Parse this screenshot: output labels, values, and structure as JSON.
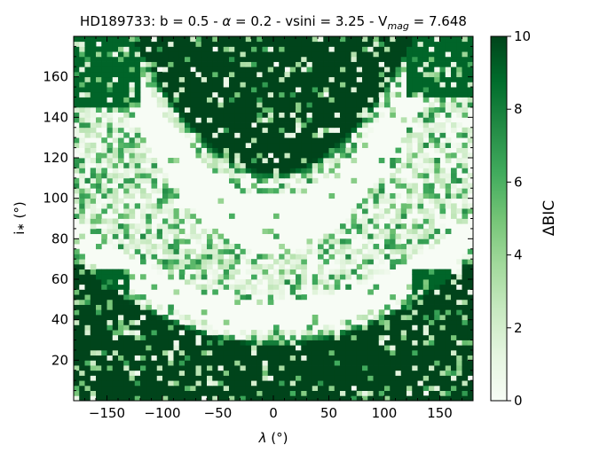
{
  "chart_data": {
    "type": "heatmap",
    "title": {
      "prefix": "HD189733:  b = 0.5 - ",
      "alpha_symbol": "α",
      "alpha_part": " = 0.2 - vsini = 3.25 - V",
      "subscript": "mag",
      "suffix": " = 7.648"
    },
    "xlabel": {
      "symbol": "λ",
      "unit": " (°)"
    },
    "ylabel": {
      "symbol": "i",
      "star": "∗",
      "unit": " (°)"
    },
    "xlim": [
      -180,
      180
    ],
    "ylim": [
      0,
      180
    ],
    "xticks": [
      -150,
      -100,
      -50,
      0,
      50,
      100,
      150
    ],
    "xtick_labels": [
      "−150",
      "−100",
      "−50",
      "0",
      "50",
      "100",
      "150"
    ],
    "yticks": [
      20,
      40,
      60,
      80,
      100,
      120,
      140,
      160
    ],
    "ytick_labels": [
      "20",
      "40",
      "60",
      "80",
      "100",
      "120",
      "140",
      "160"
    ],
    "grid": false,
    "colormap": "Greens",
    "colorbar": {
      "label": "ΔBIC",
      "range": [
        0,
        10
      ],
      "ticks": [
        0,
        2,
        4,
        6,
        8,
        10
      ],
      "tick_labels": [
        "0",
        "2",
        "4",
        "6",
        "8",
        "10"
      ]
    },
    "grid_resolution": {
      "nx": 72,
      "ny": 72,
      "dx_deg": 5,
      "dy_deg": 2.5
    },
    "structure": {
      "description_of_dark_regions": "high ΔBIC (~10) in four corners and top-center lobe; low ΔBIC (~0) in two arcs",
      "dark_regions": [
        {
          "name": "top-left",
          "lambda_range": [
            -180,
            -120
          ],
          "inc_range": [
            145,
            180
          ],
          "level": 10
        },
        {
          "name": "top-center",
          "lambda_range": [
            -45,
            45
          ],
          "inc_range": [
            120,
            180
          ],
          "level": 10
        },
        {
          "name": "top-right",
          "lambda_range": [
            120,
            180
          ],
          "inc_range": [
            150,
            180
          ],
          "level": 10
        },
        {
          "name": "bottom-left",
          "lambda_range": [
            -180,
            -130
          ],
          "inc_range": [
            0,
            65
          ],
          "level": 10
        },
        {
          "name": "bottom-center",
          "lambda_range": [
            -60,
            80
          ],
          "inc_range": [
            0,
            25
          ],
          "level": 9
        },
        {
          "name": "bottom-right",
          "lambda_range": [
            125,
            180
          ],
          "inc_range": [
            0,
            65
          ],
          "level": 10
        }
      ],
      "low_arcs": [
        {
          "name": "upper-arc",
          "vertex_lambda": 0,
          "vertex_inc": 90,
          "level": 0
        },
        {
          "name": "lower-arc",
          "vertex_lambda": 0,
          "vertex_inc": 40,
          "level": 0
        }
      ]
    }
  },
  "colors": {
    "cmap_low": "#f7fcf5",
    "cmap_stops": [
      "#f7fcf5",
      "#e5f5e0",
      "#c7e9c0",
      "#a1d99b",
      "#74c476",
      "#41ab5d",
      "#238b45",
      "#006d2c",
      "#00441b"
    ]
  }
}
